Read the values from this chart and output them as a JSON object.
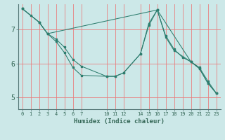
{
  "xlabel": "Humidex (Indice chaleur)",
  "background_color": "#cce8e8",
  "grid_color": "#e88080",
  "line_color": "#2d7d6e",
  "xticks": [
    0,
    1,
    2,
    3,
    4,
    5,
    6,
    7,
    10,
    11,
    12,
    14,
    15,
    16,
    17,
    18,
    19,
    20,
    21,
    22,
    23
  ],
  "yticks": [
    5,
    6,
    7
  ],
  "xlim": [
    -0.5,
    23.5
  ],
  "ylim": [
    4.65,
    7.75
  ],
  "series": [
    {
      "x": [
        0,
        1,
        2,
        3,
        4,
        5,
        6,
        7,
        10,
        11,
        12,
        14,
        15,
        16,
        17,
        18,
        19,
        20,
        21,
        22,
        23
      ],
      "y": [
        7.62,
        7.42,
        7.22,
        6.88,
        6.72,
        6.48,
        6.12,
        5.92,
        5.62,
        5.62,
        5.72,
        6.28,
        7.18,
        7.58,
        6.82,
        6.42,
        6.18,
        6.05,
        5.88,
        5.48,
        5.12
      ]
    },
    {
      "x": [
        0,
        2,
        3,
        4,
        5,
        6,
        7,
        10,
        11,
        12,
        14,
        15,
        16,
        17,
        18,
        20,
        21,
        22,
        23
      ],
      "y": [
        7.62,
        7.22,
        6.88,
        6.65,
        6.32,
        5.88,
        5.65,
        5.62,
        5.62,
        5.72,
        6.28,
        7.12,
        7.58,
        6.78,
        6.38,
        6.05,
        5.85,
        5.42,
        5.12
      ]
    },
    {
      "x": [
        0,
        2,
        3,
        16,
        20,
        21,
        22,
        23
      ],
      "y": [
        7.62,
        7.22,
        6.88,
        7.58,
        6.05,
        5.85,
        5.42,
        5.12
      ]
    }
  ]
}
